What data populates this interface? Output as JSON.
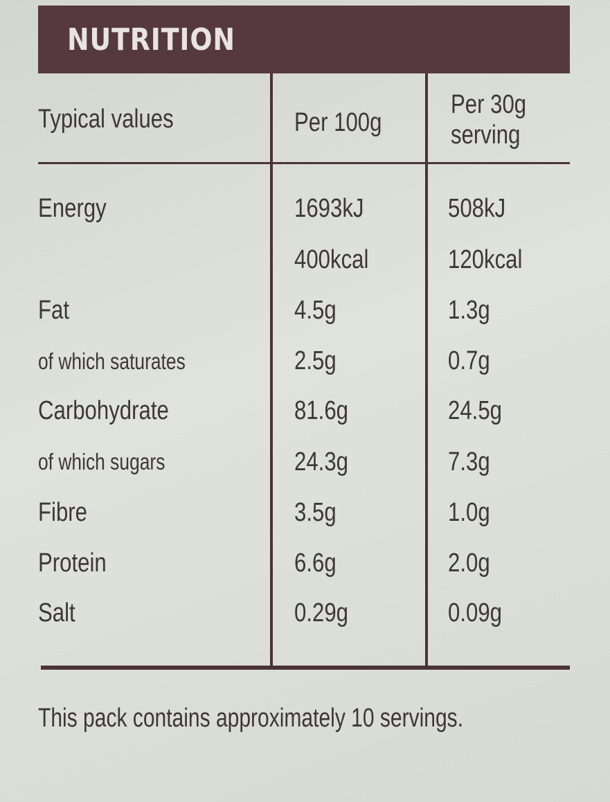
{
  "header": {
    "title": "NUTRITION"
  },
  "columns": {
    "label": "Typical values",
    "per100": "Per 100g",
    "serving_line1": "Per 30g",
    "serving_line2": "serving"
  },
  "rows": [
    {
      "label": "Energy",
      "per100": "1693kJ",
      "serving": "508kJ"
    },
    {
      "label": "",
      "per100": "400kcal",
      "serving": "120kcal"
    },
    {
      "label": "Fat",
      "per100": "4.5g",
      "serving": "1.3g"
    },
    {
      "label": "of which saturates",
      "per100": "2.5g",
      "serving": "0.7g"
    },
    {
      "label": "Carbohydrate",
      "per100": "81.6g",
      "serving": "24.5g"
    },
    {
      "label": "of which sugars",
      "per100": "24.3g",
      "serving": "7.3g"
    },
    {
      "label": "Fibre",
      "per100": "3.5g",
      "serving": "1.0g"
    },
    {
      "label": "Protein",
      "per100": "6.6g",
      "serving": "2.0g"
    },
    {
      "label": "Salt",
      "per100": "0.29g",
      "serving": "0.09g"
    }
  ],
  "footer": {
    "note": "This pack contains approximately 10 servings."
  },
  "colors": {
    "header_background": "#56393e",
    "rule_color": "#4a3338",
    "text_color": "#3d3739",
    "package_background": "#d9dcd5"
  }
}
